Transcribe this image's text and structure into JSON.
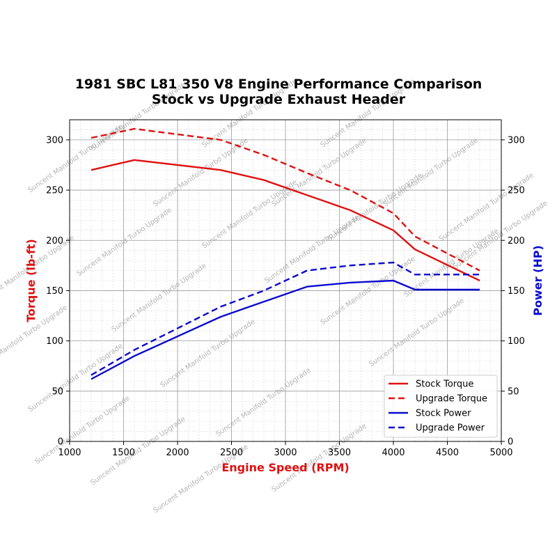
{
  "chart_data": {
    "type": "line",
    "title_line1": "1981 SBC L81 350 V8 Engine Performance Comparison",
    "title_line2": "Stock vs Upgrade Exhaust Header",
    "xlabel": "Engine Speed (RPM)",
    "ylabel_left": "Torque (lb-ft)",
    "ylabel_right": "Power (HP)",
    "xlim": [
      1000,
      5000
    ],
    "ylim_left": [
      0,
      320
    ],
    "ylim_right": [
      0,
      320
    ],
    "x_ticks": [
      "1000",
      "1500",
      "2000",
      "2500",
      "3000",
      "3500",
      "4000",
      "4500",
      "5000"
    ],
    "y_ticks_left": [
      "0",
      "50",
      "100",
      "150",
      "200",
      "250",
      "300"
    ],
    "y_ticks_right": [
      "0",
      "50",
      "100",
      "150",
      "200",
      "250",
      "300"
    ],
    "grid": true,
    "legend_position": "lower-right",
    "watermark": "Suncent Manifold Turbo Upgrade",
    "colors": {
      "torque": "#e01010",
      "power": "#0a0ad0",
      "xlabel": "#e01010",
      "ylabel_left": "#e01010",
      "ylabel_right": "#0a0ad0"
    },
    "series": [
      {
        "name": "Stock Torque",
        "axis": "left",
        "style": "solid",
        "color": "#e01010",
        "x": [
          1200,
          1600,
          2400,
          2800,
          3200,
          3600,
          4000,
          4200,
          4800
        ],
        "y": [
          270,
          280,
          270,
          260,
          245,
          230,
          210,
          191,
          160
        ]
      },
      {
        "name": "Upgrade Torque",
        "axis": "left",
        "style": "dashed",
        "color": "#e01010",
        "x": [
          1200,
          1600,
          2400,
          2800,
          3200,
          3600,
          4000,
          4200,
          4800
        ],
        "y": [
          302,
          311,
          300,
          285,
          267,
          250,
          227,
          204,
          170
        ]
      },
      {
        "name": "Stock Power",
        "axis": "right",
        "style": "solid",
        "color": "#0a0ad0",
        "x": [
          1200,
          1600,
          2400,
          2800,
          3200,
          3600,
          4000,
          4200,
          4800
        ],
        "y": [
          62,
          85,
          124,
          139,
          154,
          158,
          160,
          151,
          151
        ]
      },
      {
        "name": "Upgrade Power",
        "axis": "right",
        "style": "dashed",
        "color": "#0a0ad0",
        "x": [
          1200,
          1600,
          2400,
          2800,
          3200,
          3600,
          4000,
          4200,
          4800
        ],
        "y": [
          66,
          91,
          134,
          150,
          170,
          175,
          178,
          166,
          166
        ]
      }
    ]
  }
}
